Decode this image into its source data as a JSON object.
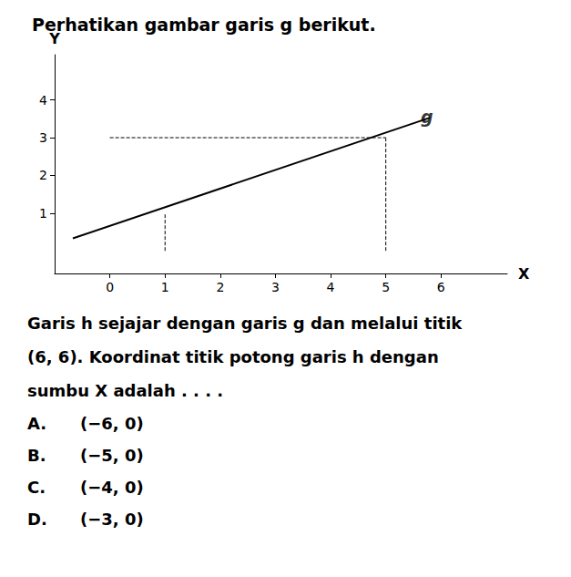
{
  "chart_data": {
    "type": "line",
    "title": "Perhatikan gambar garis g berikut.",
    "x_label": "X",
    "y_label": "Y",
    "series": [
      {
        "x": [
          -0.67,
          5.8
        ],
        "values": [
          0.33,
          3.53
        ],
        "color": "#000000",
        "line_style": "solid"
      },
      {
        "x": [
          1,
          1
        ],
        "values": [
          0,
          1
        ],
        "color": "#000000",
        "line_style": "dashed"
      },
      {
        "x": [
          0,
          5
        ],
        "values": [
          3,
          3
        ],
        "color": "#000000",
        "line_style": "dashed"
      },
      {
        "x": [
          5,
          5
        ],
        "values": [
          0,
          3
        ],
        "color": "#000000",
        "line_style": "dashed"
      }
    ],
    "annotations": [
      {
        "text": "g",
        "x": 5.55,
        "y": 3.55
      }
    ],
    "body_lines": [
      "Garis h sejajar dengan garis g dan melalui titik",
      "(6, 6). Koordinat titik potong garis h dengan",
      "sumbu X adalah . . . ."
    ],
    "options": [
      [
        "A.",
        "(−6, 0)"
      ],
      [
        "B.",
        "(−5, 0)"
      ],
      [
        "C.",
        "(−4, 0)"
      ],
      [
        "D.",
        "(−3, 0)"
      ]
    ],
    "xlim": [
      -1.0,
      7.2
    ],
    "ylim": [
      -0.6,
      5.2
    ],
    "xticks": [
      0,
      1,
      2,
      3,
      4,
      5,
      6
    ],
    "yticks": [
      1,
      2,
      3,
      4
    ],
    "grid": false
  }
}
